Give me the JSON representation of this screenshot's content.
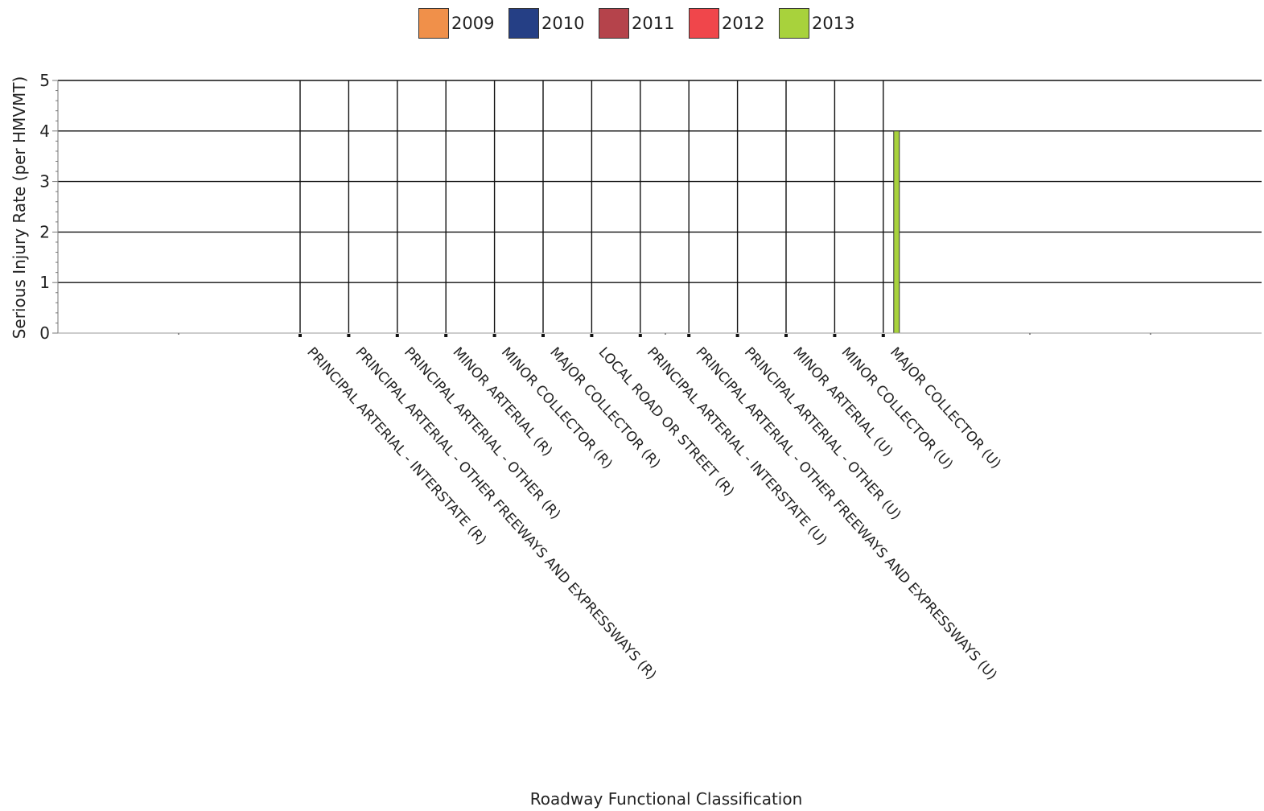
{
  "chart_data": {
    "type": "bar",
    "title": "",
    "xlabel": "Roadway Functional Classification",
    "ylabel": "Serious Injury Rate (per HMVMT)",
    "ylim": [
      0,
      5
    ],
    "yticks": [
      0,
      1,
      2,
      3,
      4,
      5
    ],
    "grid": true,
    "legend_position": "top-center",
    "categories": [
      "PRINCIPAL ARTERIAL - INTERSTATE (R)",
      "PRINCIPAL ARTERIAL - OTHER FREEWAYS AND EXPRESSWAYS (R)",
      "PRINCIPAL ARTERIAL - OTHER (R)",
      "MINOR ARTERIAL (R)",
      "MINOR COLLECTOR (R)",
      "MAJOR COLLECTOR (R)",
      "LOCAL ROAD OR STREET (R)",
      "PRINCIPAL ARTERIAL - INTERSTATE (U)",
      "PRINCIPAL ARTERIAL - OTHER FREEWAYS AND EXPRESSWAYS (U)",
      "PRINCIPAL ARTERIAL - OTHER (U)",
      "MINOR ARTERIAL (U)",
      "MINOR COLLECTOR (U)",
      "MAJOR COLLECTOR (U)"
    ],
    "series": [
      {
        "name": "2009",
        "color": "#F0904A",
        "values": [
          0,
          0,
          0,
          0,
          0,
          0,
          0,
          0,
          0,
          0,
          0,
          0,
          0
        ]
      },
      {
        "name": "2010",
        "color": "#253F85",
        "values": [
          0,
          0,
          0,
          0,
          0,
          0,
          0,
          0,
          0,
          0,
          0,
          0,
          0
        ]
      },
      {
        "name": "2011",
        "color": "#B5434B",
        "values": [
          0,
          0,
          0,
          0,
          0,
          0,
          0,
          0,
          0,
          0,
          0,
          0,
          0
        ]
      },
      {
        "name": "2012",
        "color": "#F0464B",
        "values": [
          0,
          0,
          0,
          0,
          0,
          0,
          0,
          0,
          0,
          0,
          0,
          0,
          0
        ]
      },
      {
        "name": "2013",
        "color": "#A8D23C",
        "values": [
          0,
          0,
          0,
          0,
          0,
          0,
          0,
          0,
          0,
          0,
          0,
          0,
          4.0
        ]
      }
    ]
  }
}
